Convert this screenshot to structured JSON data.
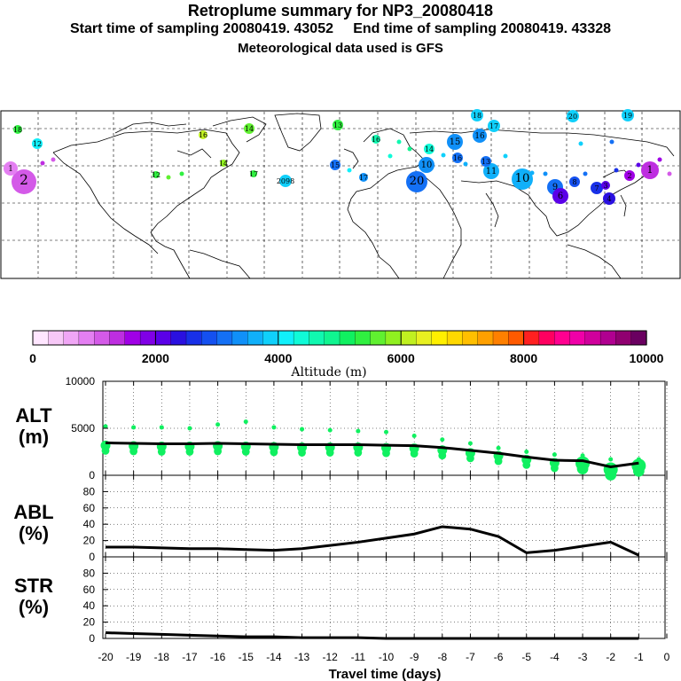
{
  "header": {
    "title": "Retroplume summary for NP3_20080418",
    "sampling_line": "Start time of sampling 20080419. 43052     End time of sampling 20080419. 43328",
    "met_line": "Meteorological data used is GFS"
  },
  "colorbar": {
    "colors": [
      "#ffe6ff",
      "#f7c8f7",
      "#f0a6f5",
      "#e47ff2",
      "#d45ae8",
      "#be2ee0",
      "#a000e6",
      "#8000e6",
      "#5a00e8",
      "#2a10e0",
      "#1830e8",
      "#1450f0",
      "#1470f5",
      "#1090f8",
      "#10b0fa",
      "#10d0fb",
      "#10f0fb",
      "#10fbd8",
      "#10f8b0",
      "#10f590",
      "#10f060",
      "#30f040",
      "#60f030",
      "#90f020",
      "#c0f020",
      "#e8f020",
      "#fff000",
      "#ffd800",
      "#ffbf00",
      "#ffa000",
      "#ff8000",
      "#ff5a00",
      "#ff2020",
      "#ff0060",
      "#ff0090",
      "#f000a8",
      "#d0009c",
      "#b00090",
      "#900070",
      "#6a0060"
    ],
    "tick_labels": [
      "0",
      "2000",
      "4000",
      "6000",
      "8000",
      "10000"
    ],
    "label": "Altitude (m)"
  },
  "map": {
    "labels": [
      {
        "t": "18",
        "c": "#10d0fb"
      },
      {
        "t": "17",
        "c": "#10d0fb"
      },
      {
        "t": "20",
        "c": "#10d0fb"
      },
      {
        "t": "19",
        "c": "#10d0fb"
      },
      {
        "t": "13",
        "c": "#30f040"
      },
      {
        "t": "14",
        "c": "#60f030"
      },
      {
        "t": "16",
        "c": "#10f8b0"
      },
      {
        "t": "12",
        "c": "#10f0fb"
      },
      {
        "t": "15",
        "c": "#1090f8"
      },
      {
        "t": "16",
        "c": "#1090f8"
      },
      {
        "t": "15",
        "c": "#1470f5"
      },
      {
        "t": "14",
        "c": "#10fbd8"
      },
      {
        "t": "10",
        "c": "#1090f8"
      },
      {
        "t": "11",
        "c": "#10b0fa"
      },
      {
        "t": "10",
        "c": "#10b0fa"
      },
      {
        "t": "20",
        "c": "#1470f5"
      },
      {
        "t": "9",
        "c": "#1470f5"
      },
      {
        "t": "8",
        "c": "#1450f0"
      },
      {
        "t": "6",
        "c": "#5a00e8"
      },
      {
        "t": "7",
        "c": "#1830e8"
      },
      {
        "t": "4",
        "c": "#2a10e0"
      },
      {
        "t": "3",
        "c": "#5a00e8"
      },
      {
        "t": "2",
        "c": "#a000e6"
      },
      {
        "t": "1",
        "c": "#be2ee0"
      },
      {
        "t": "2",
        "c": "#d45ae8"
      },
      {
        "t": "1",
        "c": "#e47ff2"
      },
      {
        "t": "18",
        "c": "#30f040"
      },
      {
        "t": "12",
        "c": "#30f040"
      },
      {
        "t": "16",
        "c": "#c0f020"
      },
      {
        "t": "14",
        "c": "#90f020"
      },
      {
        "t": "17",
        "c": "#30f040"
      },
      {
        "t": "17",
        "c": "#1090f8"
      },
      {
        "t": "16",
        "c": "#1470f5"
      },
      {
        "t": "13",
        "c": "#1470f5"
      },
      {
        "t": "2098",
        "c": "#10d0fb"
      }
    ]
  },
  "chart_data": [
    {
      "type": "line",
      "panel": "ALT",
      "ylabel": "ALT\n(m)",
      "ylim": [
        0,
        10000
      ],
      "yticks": [
        "0",
        "5000",
        "10000"
      ],
      "x": [
        -20,
        -19,
        -18,
        -17,
        -16,
        -15,
        -14,
        -13,
        -12,
        -11,
        -10,
        -9,
        -8,
        -7,
        -6,
        -5,
        -4,
        -3,
        -2,
        -1
      ],
      "mean_altitude_m": [
        3450,
        3400,
        3350,
        3350,
        3400,
        3350,
        3300,
        3250,
        3250,
        3250,
        3200,
        3150,
        2950,
        2650,
        2350,
        1950,
        1600,
        1550,
        900,
        1300
      ],
      "upper_dots_m": [
        5200,
        5100,
        5100,
        5000,
        5400,
        5700,
        5100,
        4900,
        4800,
        4700,
        4600,
        4200,
        3800,
        3400,
        2900,
        2500,
        2200,
        2100,
        1700,
        1700
      ]
    },
    {
      "type": "line",
      "panel": "ABL",
      "ylabel": "ABL\n(%)",
      "ylim": [
        0,
        100
      ],
      "yticks": [
        "0",
        "20",
        "40",
        "60",
        "80"
      ],
      "x": [
        -20,
        -19,
        -18,
        -17,
        -16,
        -15,
        -14,
        -13,
        -12,
        -11,
        -10,
        -9,
        -8,
        -7,
        -6,
        -5,
        -4,
        -3,
        -2,
        -1
      ],
      "values": [
        12,
        12,
        11,
        10,
        10,
        9,
        8,
        10,
        14,
        18,
        23,
        28,
        37,
        34,
        25,
        5,
        8,
        13,
        18,
        2
      ]
    },
    {
      "type": "line",
      "panel": "STR",
      "ylabel": "STR\n(%)",
      "ylim": [
        0,
        100
      ],
      "yticks": [
        "0",
        "20",
        "40",
        "60",
        "80"
      ],
      "x": [
        -20,
        -19,
        -18,
        -17,
        -16,
        -15,
        -14,
        -13,
        -12,
        -11,
        -10,
        -9,
        -8,
        -7,
        -6,
        -5,
        -4,
        -3,
        -2,
        -1
      ],
      "values": [
        7,
        6,
        5,
        4,
        3,
        2,
        2,
        1,
        1,
        1,
        0,
        0,
        0,
        0,
        0,
        0,
        0,
        0,
        0,
        0
      ]
    }
  ],
  "xaxis": {
    "tick_labels": [
      "-20",
      "-19",
      "-18",
      "-17",
      "-16",
      "-15",
      "-14",
      "-13",
      "-12",
      "-11",
      "-10",
      "-9",
      "-8",
      "-7",
      "-6",
      "-5",
      "-4",
      "-3",
      "-2",
      "-1",
      "0"
    ],
    "label": "Travel time (days)"
  },
  "panel_labels": {
    "alt_1": "ALT",
    "alt_2": "(m)",
    "abl_1": "ABL",
    "abl_2": "(%)",
    "str_1": "STR",
    "str_2": "(%)"
  }
}
